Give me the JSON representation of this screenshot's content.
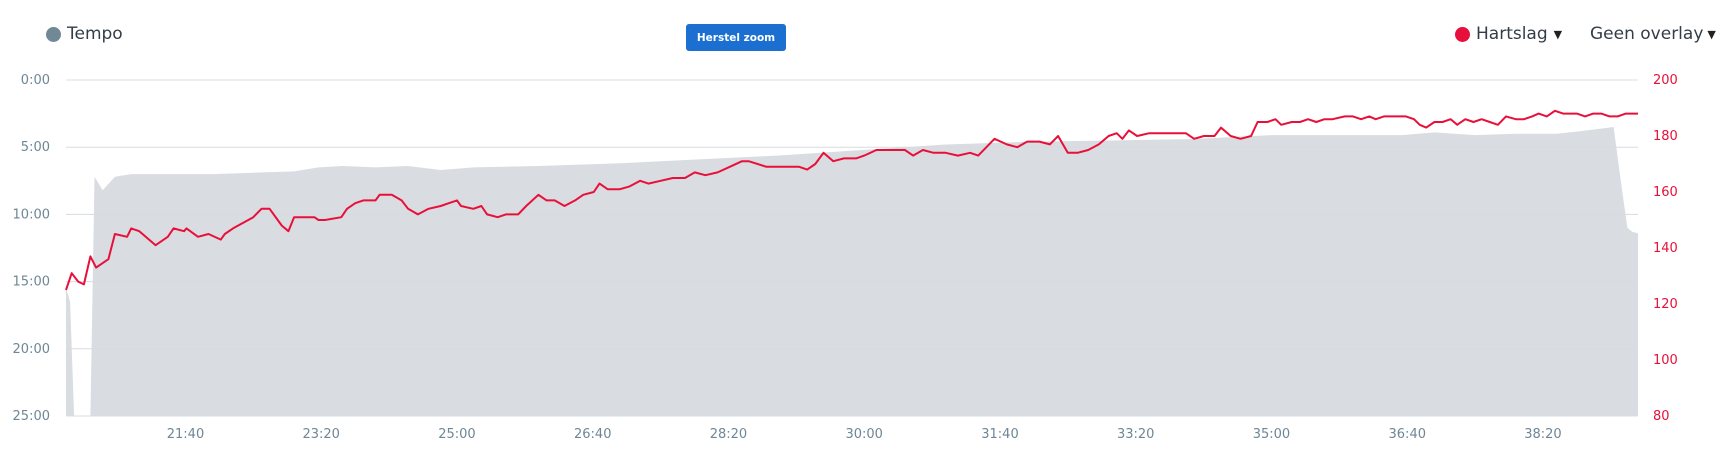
{
  "colors": {
    "tempo": "#718896",
    "heart_rate": "#e8103a",
    "button": "#1a6fd1",
    "area_fill": "#d9dde1",
    "grid": "#d8dcdf",
    "left_axis_text": "#6e8796",
    "bottom_axis_text": "#6e8796"
  },
  "legend": {
    "left_label": "Tempo",
    "right_label": "Hartslag",
    "overlay_label": "Geen overlay"
  },
  "toolbar": {
    "reset_zoom_label": "Herstel zoom"
  },
  "chart_data": {
    "type": "line",
    "x_axis": {
      "unit": "elapsed time",
      "range": [
        20.2,
        39.5
      ],
      "tick_values": [
        21.667,
        23.333,
        25,
        26.667,
        28.333,
        30,
        31.667,
        33.333,
        35,
        36.667,
        38.333
      ],
      "tick_labels": [
        "21:40",
        "23:20",
        "25:00",
        "26:40",
        "28:20",
        "30:00",
        "31:40",
        "33:20",
        "35:00",
        "36:40",
        "38:20"
      ]
    },
    "y_left": {
      "range": [
        0,
        25
      ],
      "reversed": true,
      "tick_values": [
        0,
        5,
        10,
        15,
        20,
        25
      ],
      "tick_labels": [
        "0:00",
        "5:00",
        "10:00",
        "15:00",
        "20:00",
        "25:00"
      ]
    },
    "y_right": {
      "range": [
        80,
        200
      ],
      "tick_values": [
        80,
        100,
        120,
        140,
        160,
        180,
        200
      ],
      "tick_labels": [
        "80",
        "100",
        "120",
        "140",
        "160",
        "180",
        "200"
      ]
    },
    "grid": true,
    "series": [
      {
        "name": "Tempo",
        "kind": "area",
        "axis": "left",
        "points": [
          [
            20.2,
            15.5
          ],
          [
            20.25,
            16.5
          ],
          [
            20.3,
            25
          ],
          [
            20.5,
            25
          ],
          [
            20.55,
            7.2
          ],
          [
            20.65,
            8.2
          ],
          [
            20.8,
            7.2
          ],
          [
            21.0,
            7.0
          ],
          [
            21.5,
            7.0
          ],
          [
            22.0,
            7.0
          ],
          [
            22.5,
            6.9
          ],
          [
            23.0,
            6.8
          ],
          [
            23.3,
            6.5
          ],
          [
            23.6,
            6.4
          ],
          [
            24.0,
            6.5
          ],
          [
            24.4,
            6.4
          ],
          [
            24.8,
            6.7
          ],
          [
            25.2,
            6.5
          ],
          [
            26.0,
            6.4
          ],
          [
            27.0,
            6.2
          ],
          [
            28.0,
            5.9
          ],
          [
            29.0,
            5.6
          ],
          [
            30.0,
            5.2
          ],
          [
            31.0,
            4.8
          ],
          [
            32.0,
            4.6
          ],
          [
            33.0,
            4.5
          ],
          [
            34.0,
            4.4
          ],
          [
            35.0,
            4.1
          ],
          [
            36.0,
            4.1
          ],
          [
            36.6,
            4.1
          ],
          [
            37.0,
            3.9
          ],
          [
            37.5,
            4.1
          ],
          [
            38.0,
            4.0
          ],
          [
            38.5,
            4.0
          ],
          [
            38.8,
            3.8
          ],
          [
            39.2,
            3.5
          ],
          [
            39.3,
            8.0
          ],
          [
            39.37,
            11.0
          ],
          [
            39.43,
            11.3
          ],
          [
            39.5,
            11.4
          ]
        ]
      },
      {
        "name": "Hartslag",
        "kind": "line",
        "axis": "right",
        "points": [
          [
            20.2,
            125
          ],
          [
            20.27,
            131
          ],
          [
            20.35,
            128
          ],
          [
            20.42,
            127
          ],
          [
            20.5,
            137
          ],
          [
            20.57,
            133
          ],
          [
            20.72,
            136
          ],
          [
            20.8,
            145
          ],
          [
            20.95,
            144
          ],
          [
            21.0,
            147
          ],
          [
            21.1,
            146
          ],
          [
            21.3,
            141
          ],
          [
            21.45,
            144
          ],
          [
            21.52,
            147
          ],
          [
            21.65,
            146
          ],
          [
            21.68,
            147
          ],
          [
            21.82,
            144
          ],
          [
            21.95,
            145
          ],
          [
            22.1,
            143
          ],
          [
            22.15,
            145
          ],
          [
            22.25,
            147
          ],
          [
            22.5,
            151
          ],
          [
            22.6,
            154
          ],
          [
            22.7,
            154
          ],
          [
            22.85,
            148
          ],
          [
            22.93,
            146
          ],
          [
            23.0,
            151
          ],
          [
            23.25,
            151
          ],
          [
            23.3,
            150
          ],
          [
            23.38,
            150
          ],
          [
            23.58,
            151
          ],
          [
            23.65,
            154
          ],
          [
            23.75,
            156
          ],
          [
            23.85,
            157
          ],
          [
            24.0,
            157
          ],
          [
            24.05,
            159
          ],
          [
            24.2,
            159
          ],
          [
            24.32,
            157
          ],
          [
            24.4,
            154
          ],
          [
            24.52,
            152
          ],
          [
            24.65,
            154
          ],
          [
            24.8,
            155
          ],
          [
            24.9,
            156
          ],
          [
            25.0,
            157
          ],
          [
            25.05,
            155
          ],
          [
            25.2,
            154
          ],
          [
            25.3,
            155
          ],
          [
            25.37,
            152
          ],
          [
            25.5,
            151
          ],
          [
            25.6,
            152
          ],
          [
            25.75,
            152
          ],
          [
            25.85,
            155
          ],
          [
            26.0,
            159
          ],
          [
            26.1,
            157
          ],
          [
            26.2,
            157
          ],
          [
            26.32,
            155
          ],
          [
            26.45,
            157
          ],
          [
            26.55,
            159
          ],
          [
            26.68,
            160
          ],
          [
            26.75,
            163
          ],
          [
            26.85,
            161
          ],
          [
            27.0,
            161
          ],
          [
            27.12,
            162
          ],
          [
            27.25,
            164
          ],
          [
            27.35,
            163
          ],
          [
            27.5,
            164
          ],
          [
            27.65,
            165
          ],
          [
            27.8,
            165
          ],
          [
            27.92,
            167
          ],
          [
            28.05,
            166
          ],
          [
            28.2,
            167
          ],
          [
            28.35,
            169
          ],
          [
            28.5,
            171
          ],
          [
            28.58,
            171
          ],
          [
            28.8,
            169
          ],
          [
            29.0,
            169
          ],
          [
            29.2,
            169
          ],
          [
            29.3,
            168
          ],
          [
            29.4,
            170
          ],
          [
            29.5,
            174
          ],
          [
            29.62,
            171
          ],
          [
            29.75,
            172
          ],
          [
            29.9,
            172
          ],
          [
            30.0,
            173
          ],
          [
            30.15,
            175
          ],
          [
            30.3,
            175
          ],
          [
            30.5,
            175
          ],
          [
            30.6,
            173
          ],
          [
            30.72,
            175
          ],
          [
            30.85,
            174
          ],
          [
            31.0,
            174
          ],
          [
            31.15,
            173
          ],
          [
            31.3,
            174
          ],
          [
            31.4,
            173
          ],
          [
            31.5,
            176
          ],
          [
            31.6,
            179
          ],
          [
            31.75,
            177
          ],
          [
            31.88,
            176
          ],
          [
            32.0,
            178
          ],
          [
            32.15,
            178
          ],
          [
            32.28,
            177
          ],
          [
            32.38,
            180
          ],
          [
            32.5,
            174
          ],
          [
            32.62,
            174
          ],
          [
            32.75,
            175
          ],
          [
            32.88,
            177
          ],
          [
            33.0,
            180
          ],
          [
            33.1,
            181
          ],
          [
            33.17,
            179
          ],
          [
            33.25,
            182
          ],
          [
            33.35,
            180
          ],
          [
            33.5,
            181
          ],
          [
            33.65,
            181
          ],
          [
            33.8,
            181
          ],
          [
            33.95,
            181
          ],
          [
            34.05,
            179
          ],
          [
            34.17,
            180
          ],
          [
            34.3,
            180
          ],
          [
            34.38,
            183
          ],
          [
            34.5,
            180
          ],
          [
            34.62,
            179
          ],
          [
            34.75,
            180
          ],
          [
            34.83,
            185
          ],
          [
            34.95,
            185
          ],
          [
            35.05,
            186
          ],
          [
            35.12,
            184
          ],
          [
            35.25,
            185
          ],
          [
            35.35,
            185
          ],
          [
            35.45,
            186
          ],
          [
            35.55,
            185
          ],
          [
            35.65,
            186
          ],
          [
            35.75,
            186
          ],
          [
            35.9,
            187
          ],
          [
            36.0,
            187
          ],
          [
            36.1,
            186
          ],
          [
            36.2,
            187
          ],
          [
            36.28,
            186
          ],
          [
            36.38,
            187
          ],
          [
            36.48,
            187
          ],
          [
            36.58,
            187
          ],
          [
            36.65,
            187
          ],
          [
            36.75,
            186
          ],
          [
            36.82,
            184
          ],
          [
            36.9,
            183
          ],
          [
            37.0,
            185
          ],
          [
            37.1,
            185
          ],
          [
            37.2,
            186
          ],
          [
            37.28,
            184
          ],
          [
            37.38,
            186
          ],
          [
            37.48,
            185
          ],
          [
            37.58,
            186
          ],
          [
            37.68,
            185
          ],
          [
            37.78,
            184
          ],
          [
            37.88,
            187
          ],
          [
            38.0,
            186
          ],
          [
            38.1,
            186
          ],
          [
            38.2,
            187
          ],
          [
            38.28,
            188
          ],
          [
            38.38,
            187
          ],
          [
            38.48,
            189
          ],
          [
            38.58,
            188
          ],
          [
            38.68,
            188
          ],
          [
            38.75,
            188
          ],
          [
            38.85,
            187
          ],
          [
            38.95,
            188
          ],
          [
            39.05,
            188
          ],
          [
            39.15,
            187
          ],
          [
            39.25,
            187
          ],
          [
            39.35,
            188
          ],
          [
            39.45,
            188
          ],
          [
            39.5,
            188
          ]
        ]
      }
    ]
  }
}
